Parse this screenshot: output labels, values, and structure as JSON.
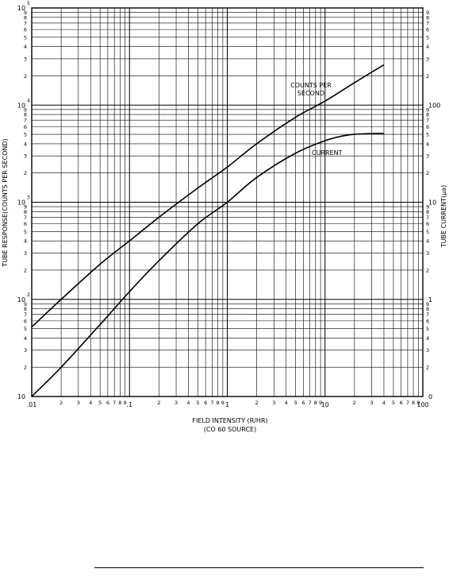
{
  "chart_data": {
    "type": "line",
    "x_scale": "log",
    "y_scale": "log",
    "xlim": [
      0.01,
      100
    ],
    "ylim_left": [
      10,
      100000
    ],
    "ylim_right": [
      0,
      1000
    ],
    "grid": true,
    "xlabel": "FIELD INTENSITY (R/HR)",
    "xlabel_sub": "(CO 60 SOURCE)",
    "ylabel_left": "TUBE RESPONSE(COUNTS PER SECOND)",
    "ylabel_right": "TUBE CURRENT(μa)",
    "x_major_labels": [
      ".01",
      ".1",
      "1",
      "10",
      "100"
    ],
    "x_minor_labels": [
      "2",
      "3",
      "4",
      "5",
      "6",
      "7",
      "8",
      "9"
    ],
    "y_left_decade_bases": [
      "10",
      "10",
      "10",
      "10",
      "10"
    ],
    "y_left_exponents": [
      "",
      "2",
      "3",
      "4",
      "5"
    ],
    "y_minor_labels": [
      "2",
      "3",
      "4",
      "5",
      "6",
      "7",
      "8",
      "9"
    ],
    "y_right_major_labels": [
      "0",
      "1",
      "10",
      "100"
    ],
    "series": [
      {
        "name": "COUNTS PER SECOND",
        "x": [
          0.01,
          0.02,
          0.05,
          0.1,
          0.2,
          0.5,
          1,
          2,
          5,
          10,
          20,
          40
        ],
        "y": [
          52,
          100,
          230,
          400,
          700,
          1400,
          2300,
          4000,
          7500,
          11000,
          17000,
          26000
        ]
      },
      {
        "name": "CURRENT",
        "x": [
          0.01,
          0.02,
          0.05,
          0.1,
          0.2,
          0.5,
          1,
          2,
          5,
          10,
          15,
          20,
          30,
          40
        ],
        "y": [
          10,
          20,
          55,
          120,
          250,
          600,
          1000,
          1800,
          3200,
          4300,
          4800,
          5000,
          5100,
          5100
        ]
      }
    ],
    "annotations": [
      {
        "text": "COUNTS PER",
        "series": 0
      },
      {
        "text": "SECOND",
        "series": 0
      },
      {
        "text": "CURRENT",
        "series": 1
      }
    ]
  }
}
